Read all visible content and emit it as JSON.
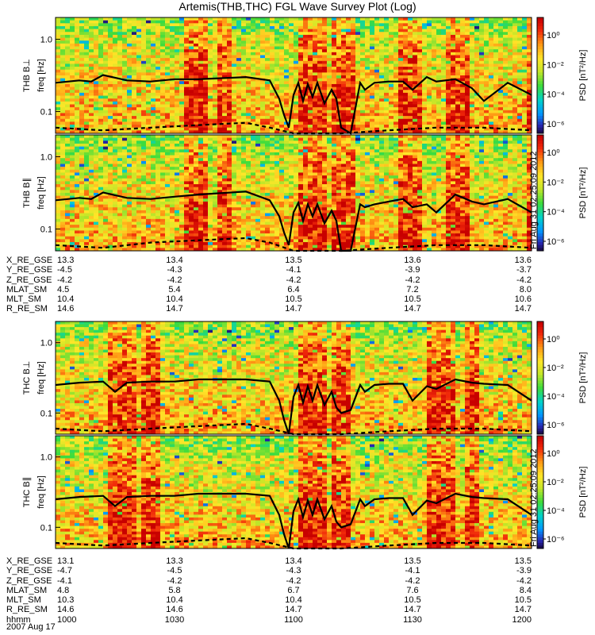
{
  "title": "Artemis(THB,THC) FGL Wave Survey Plot (Log)",
  "colorbar": {
    "label": "PSD [nT²/Hz]",
    "ticks": [
      "10⁰",
      "10⁻²",
      "10⁻⁴",
      "10⁻⁶"
    ],
    "stamp": "Fri Aug 31 02:25:09 2012"
  },
  "chart_data": [
    {
      "type": "heatmap",
      "panel": "THB B⊥",
      "ylabel": "freq [Hz]",
      "yscale": "log",
      "ylim": [
        0.05,
        2.0
      ],
      "yticks": [
        "1.0",
        "0.1"
      ],
      "xlim": [
        1000,
        1200
      ],
      "series": [
        {
          "name": "solid",
          "x": [
            1000,
            1010,
            1015,
            1020,
            1030,
            1040,
            1050,
            1060,
            1080,
            1090,
            1094,
            1096,
            1098,
            1100,
            1102,
            1104,
            1106,
            1108,
            1110,
            1113,
            1116,
            1118,
            1120,
            1124,
            1128,
            1130,
            1134,
            1140,
            1146,
            1150,
            1156,
            1160,
            1168,
            1175,
            1180,
            1190,
            1200
          ],
          "y": [
            0.25,
            0.27,
            0.26,
            0.32,
            0.27,
            0.26,
            0.28,
            0.28,
            0.3,
            0.27,
            0.15,
            0.09,
            0.06,
            0.17,
            0.25,
            0.14,
            0.24,
            0.16,
            0.25,
            0.13,
            0.2,
            0.15,
            0.06,
            0.04,
            0.25,
            0.2,
            0.25,
            0.26,
            0.26,
            0.2,
            0.3,
            0.26,
            0.28,
            0.21,
            0.14,
            0.25,
            0.17
          ]
        },
        {
          "name": "dashed",
          "x": [
            1000,
            1020,
            1040,
            1060,
            1080,
            1090,
            1100,
            1120,
            1140,
            1160,
            1180,
            1200
          ],
          "y": [
            0.06,
            0.055,
            0.06,
            0.065,
            0.07,
            0.06,
            0.05,
            0.05,
            0.055,
            0.06,
            0.06,
            0.055
          ]
        }
      ]
    },
    {
      "type": "heatmap",
      "panel": "THB B∥",
      "ylabel": "freq [Hz]",
      "yscale": "log",
      "ylim": [
        0.05,
        2.0
      ],
      "yticks": [
        "1.0",
        "0.1"
      ],
      "xlim": [
        1000,
        1200
      ],
      "series": [
        {
          "name": "solid",
          "x": [
            1000,
            1010,
            1015,
            1020,
            1030,
            1040,
            1050,
            1060,
            1080,
            1090,
            1094,
            1096,
            1098,
            1100,
            1102,
            1104,
            1106,
            1108,
            1110,
            1113,
            1116,
            1118,
            1120,
            1124,
            1128,
            1130,
            1134,
            1140,
            1146,
            1150,
            1156,
            1160,
            1168,
            1175,
            1180,
            1190,
            1200
          ],
          "y": [
            0.25,
            0.27,
            0.26,
            0.32,
            0.27,
            0.26,
            0.28,
            0.3,
            0.33,
            0.25,
            0.15,
            0.09,
            0.06,
            0.17,
            0.23,
            0.13,
            0.22,
            0.15,
            0.22,
            0.12,
            0.18,
            0.13,
            0.05,
            0.04,
            0.22,
            0.2,
            0.22,
            0.24,
            0.26,
            0.2,
            0.22,
            0.17,
            0.3,
            0.24,
            0.22,
            0.26,
            0.17
          ]
        },
        {
          "name": "dashed",
          "x": [
            1000,
            1020,
            1040,
            1060,
            1080,
            1090,
            1100,
            1120,
            1140,
            1160,
            1180,
            1200
          ],
          "y": [
            0.06,
            0.055,
            0.065,
            0.07,
            0.075,
            0.065,
            0.05,
            0.05,
            0.055,
            0.06,
            0.06,
            0.055
          ]
        }
      ]
    },
    {
      "type": "heatmap",
      "panel": "THC B⊥",
      "ylabel": "freq [Hz]",
      "yscale": "log",
      "ylim": [
        0.05,
        2.0
      ],
      "yticks": [
        "1.0",
        "0.1"
      ],
      "xlim": [
        1000,
        1200
      ],
      "series": [
        {
          "name": "solid",
          "x": [
            1000,
            1010,
            1020,
            1025,
            1030,
            1040,
            1050,
            1060,
            1080,
            1090,
            1094,
            1096,
            1098,
            1100,
            1102,
            1104,
            1106,
            1108,
            1110,
            1113,
            1116,
            1118,
            1120,
            1124,
            1128,
            1130,
            1134,
            1140,
            1146,
            1150,
            1156,
            1160,
            1168,
            1175,
            1180,
            1190,
            1200
          ],
          "y": [
            0.25,
            0.27,
            0.28,
            0.2,
            0.27,
            0.28,
            0.28,
            0.3,
            0.3,
            0.28,
            0.15,
            0.08,
            0.05,
            0.17,
            0.25,
            0.14,
            0.24,
            0.15,
            0.25,
            0.13,
            0.2,
            0.12,
            0.1,
            0.11,
            0.25,
            0.2,
            0.25,
            0.26,
            0.26,
            0.15,
            0.24,
            0.22,
            0.3,
            0.27,
            0.26,
            0.25,
            0.15
          ]
        },
        {
          "name": "dashed",
          "x": [
            1000,
            1020,
            1040,
            1060,
            1080,
            1090,
            1100,
            1120,
            1140,
            1160,
            1180,
            1200
          ],
          "y": [
            0.06,
            0.055,
            0.06,
            0.065,
            0.07,
            0.06,
            0.05,
            0.05,
            0.055,
            0.06,
            0.06,
            0.055
          ]
        }
      ]
    },
    {
      "type": "heatmap",
      "panel": "THC B∥",
      "ylabel": "freq [Hz]",
      "yscale": "log",
      "ylim": [
        0.05,
        2.0
      ],
      "yticks": [
        "1.0",
        "0.1"
      ],
      "xlim": [
        1000,
        1200
      ],
      "series": [
        {
          "name": "solid",
          "x": [
            1000,
            1010,
            1020,
            1025,
            1030,
            1040,
            1050,
            1060,
            1080,
            1090,
            1094,
            1096,
            1098,
            1100,
            1102,
            1104,
            1106,
            1108,
            1110,
            1113,
            1116,
            1118,
            1120,
            1124,
            1128,
            1130,
            1134,
            1140,
            1146,
            1150,
            1156,
            1160,
            1168,
            1175,
            1180,
            1190,
            1200
          ],
          "y": [
            0.25,
            0.27,
            0.28,
            0.2,
            0.27,
            0.28,
            0.28,
            0.3,
            0.3,
            0.28,
            0.15,
            0.08,
            0.05,
            0.17,
            0.25,
            0.14,
            0.24,
            0.15,
            0.25,
            0.13,
            0.2,
            0.12,
            0.1,
            0.11,
            0.25,
            0.2,
            0.25,
            0.26,
            0.26,
            0.15,
            0.24,
            0.22,
            0.3,
            0.27,
            0.26,
            0.25,
            0.15
          ]
        },
        {
          "name": "dashed",
          "x": [
            1000,
            1020,
            1040,
            1060,
            1080,
            1090,
            1100,
            1120,
            1140,
            1160,
            1180,
            1200
          ],
          "y": [
            0.06,
            0.055,
            0.06,
            0.065,
            0.07,
            0.06,
            0.05,
            0.05,
            0.055,
            0.06,
            0.06,
            0.055
          ]
        }
      ]
    }
  ],
  "ephemeris_top": {
    "rows": [
      {
        "label": "X_RE_GSE",
        "values": [
          "13.3",
          "13.4",
          "13.5",
          "13.6",
          "13.6"
        ]
      },
      {
        "label": "Y_RE_GSE",
        "values": [
          "-4.5",
          "-4.3",
          "-4.1",
          "-3.9",
          "-3.7"
        ]
      },
      {
        "label": "Z_RE_GSE",
        "values": [
          "-4.2",
          "-4.2",
          "-4.2",
          "-4.2",
          "-4.2"
        ]
      },
      {
        "label": "MLAT_SM",
        "values": [
          "4.5",
          "5.4",
          "6.4",
          "7.2",
          "8.0"
        ]
      },
      {
        "label": "MLT_SM",
        "values": [
          "10.4",
          "10.4",
          "10.5",
          "10.5",
          "10.6"
        ]
      },
      {
        "label": "R_RE_SM",
        "values": [
          "14.6",
          "14.7",
          "14.7",
          "14.7",
          "14.7"
        ]
      }
    ]
  },
  "ephemeris_bottom": {
    "rows": [
      {
        "label": "X_RE_GSE",
        "values": [
          "13.1",
          "13.3",
          "13.4",
          "13.5",
          "13.5"
        ]
      },
      {
        "label": "Y_RE_GSE",
        "values": [
          "-4.7",
          "-4.5",
          "-4.3",
          "-4.1",
          "-3.9"
        ]
      },
      {
        "label": "Z_RE_GSE",
        "values": [
          "-4.1",
          "-4.2",
          "-4.2",
          "-4.2",
          "-4.2"
        ]
      },
      {
        "label": "MLAT_SM",
        "values": [
          "4.8",
          "5.8",
          "6.7",
          "7.6",
          "8.4"
        ]
      },
      {
        "label": "MLT_SM",
        "values": [
          "10.3",
          "10.4",
          "10.4",
          "10.5",
          "10.5"
        ]
      },
      {
        "label": "R_RE_SM",
        "values": [
          "14.6",
          "14.6",
          "14.7",
          "14.7",
          "14.7"
        ]
      },
      {
        "label": "hhmm",
        "values": [
          "1000",
          "1030",
          "1100",
          "1130",
          "1200"
        ]
      }
    ]
  },
  "date": "2007 Aug 17"
}
